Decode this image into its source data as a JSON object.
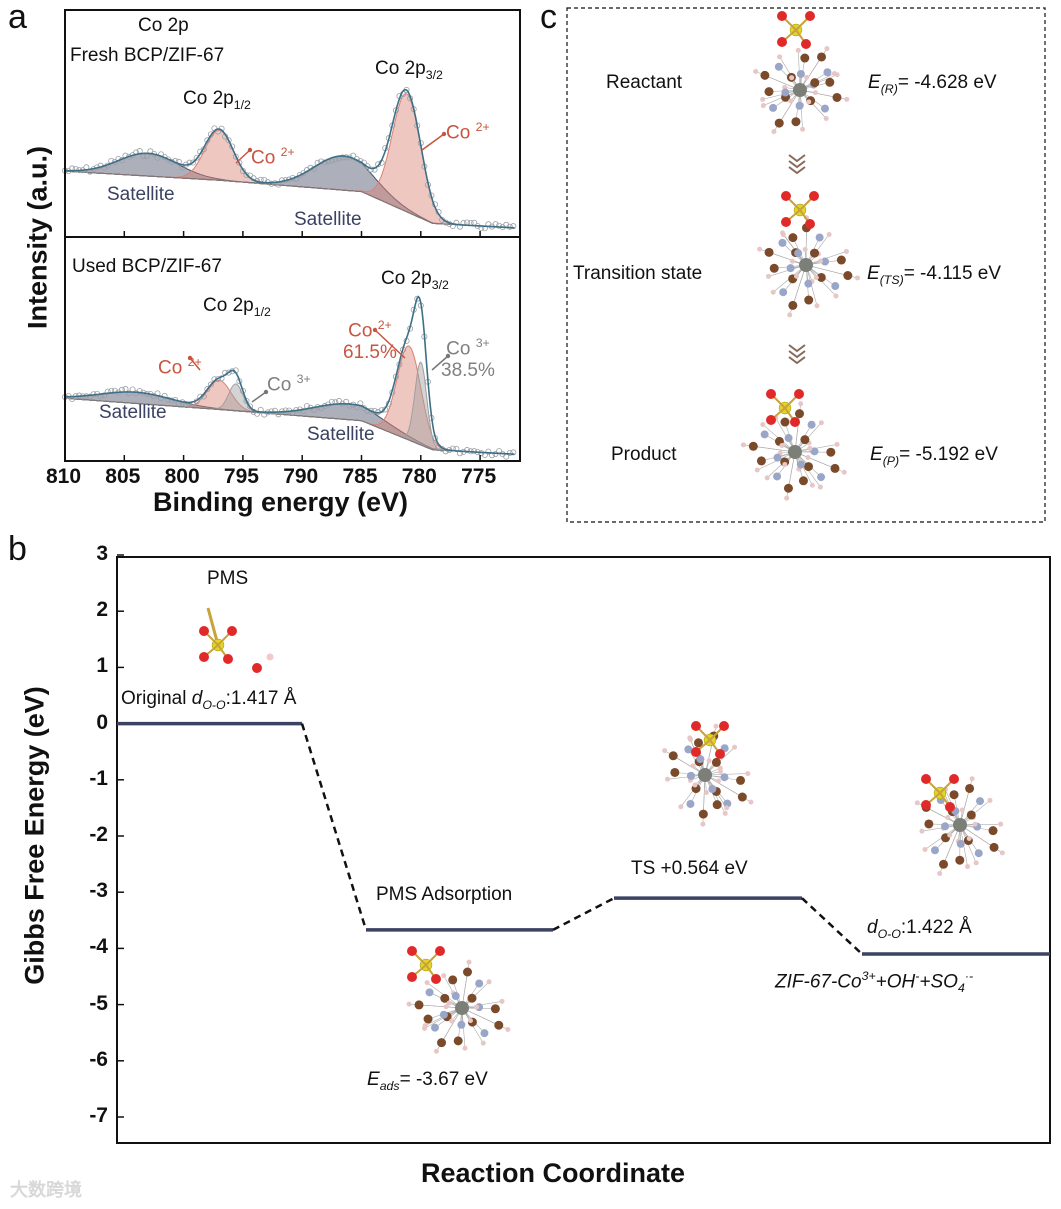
{
  "panels": {
    "a": "a",
    "b": "b",
    "c": "c"
  },
  "watermark": "大数跨境",
  "chart_data": [
    {
      "type": "line",
      "title": "Co 2p",
      "xlabel": "Binding energy (eV)",
      "ylabel": "Intensity (a.u.)",
      "xlim": [
        810,
        772
      ],
      "xticks": [
        "810",
        "805",
        "800",
        "795",
        "790",
        "785",
        "780",
        "775"
      ],
      "subplots": [
        {
          "name": "Fresh BCP/ZIF-67",
          "background": [
            [
              810,
              0.29
            ],
            [
              797,
              0.25
            ],
            [
              785,
              0.2
            ],
            [
              779,
              0.06
            ],
            [
              772,
              0.04
            ]
          ],
          "components": [
            {
              "name": "Satellite",
              "center": 803,
              "height": 0.1,
              "sigma": 2.5,
              "color": "#4a5068"
            },
            {
              "name": "Co 2+",
              "center": 797,
              "height": 0.22,
              "sigma": 1.2,
              "color": "#d98276"
            },
            {
              "name": "Satellite",
              "center": 786.5,
              "height": 0.15,
              "sigma": 2.5,
              "color": "#4a5068"
            },
            {
              "name": "Co 2+",
              "center": 781.2,
              "height": 0.52,
              "sigma": 1.2,
              "color": "#d98276"
            }
          ],
          "labels": {
            "peak_half": "Co 2p",
            "peak_half_sub": "1/2",
            "peak_three": "Co 2p",
            "peak_three_sub": "3/2",
            "co2_a": "Co ",
            "co2_a_sup": "2+",
            "co2_b": "Co ",
            "co2_b_sup": "2+",
            "sat1": "Satellite",
            "sat2": "Satellite"
          }
        },
        {
          "name": "Used BCP/ZIF-67",
          "background": [
            [
              810,
              0.28
            ],
            [
              797,
              0.23
            ],
            [
              785,
              0.18
            ],
            [
              779,
              0.05
            ],
            [
              772,
              0.03
            ]
          ],
          "components": [
            {
              "name": "Satellite",
              "center": 804,
              "height": 0.05,
              "sigma": 3,
              "color": "#4a5068"
            },
            {
              "name": "Co 2+",
              "center": 797,
              "height": 0.13,
              "sigma": 1.0,
              "color": "#d98276"
            },
            {
              "name": "Co 3+",
              "center": 795.6,
              "height": 0.12,
              "sigma": 0.6,
              "color": "#a0a0a0"
            },
            {
              "name": "Satellite",
              "center": 786,
              "height": 0.07,
              "sigma": 3,
              "color": "#4a5068"
            },
            {
              "name": "Co 2+",
              "center": 781.0,
              "height": 0.42,
              "sigma": 1.0,
              "color": "#d98276"
            },
            {
              "name": "Co 3+",
              "center": 780.0,
              "height": 0.37,
              "sigma": 0.5,
              "color": "#a0a0a0"
            }
          ],
          "labels": {
            "peak_half": "Co 2p",
            "peak_half_sub": "1/2",
            "peak_three": "Co 2p",
            "peak_three_sub": "3/2",
            "co2_a": "Co ",
            "co2_a_sup": "2+",
            "co3_a": "Co ",
            "co3_a_sup": "3+",
            "co2_b": "Co ",
            "co2_b_sup": "2+",
            "co2_b_pct": "61.5%",
            "co3_b": "Co ",
            "co3_b_sup": "3+",
            "co3_b_pct": "38.5%",
            "sat1": "Satellite",
            "sat2": "Satellite"
          }
        }
      ]
    },
    {
      "type": "line",
      "title": "",
      "xlabel": "Reaction Coordinate",
      "ylabel": "Gibbs Free Energy (eV)",
      "ylim": [
        3,
        -7.4
      ],
      "yticks": [
        "3",
        "2",
        "1",
        "0",
        "-1",
        "-2",
        "-3",
        "-4",
        "-5",
        "-6",
        "-7"
      ],
      "levels": [
        {
          "name": "PMS",
          "energy": 0
        },
        {
          "name": "PMS Adsorption",
          "energy": -3.67
        },
        {
          "name": "TS",
          "energy": -3.106
        },
        {
          "name": "ZIF-67-Co3+ + OH- + SO4·-",
          "energy": -4.1
        }
      ],
      "line_color": "#3b4262",
      "annotations": {
        "pms": "PMS",
        "orig_pre": "Original ",
        "orig_d": "d",
        "orig_sub": "O-O",
        "orig_val": ":1.417 Å",
        "ads_label": "PMS Adsorption",
        "eads_e": "E",
        "eads_sub": "ads",
        "eads_val": "= -3.67 eV",
        "ts_label": "TS +0.564 eV",
        "prod_d": "d",
        "prod_sub": "O-O",
        "prod_val": ":1.422 Å",
        "prod_formula_a": "ZIF-67-Co",
        "prod_formula_a_sup": "3+",
        "prod_formula_b": "+OH",
        "prod_formula_b_sup": "-",
        "prod_formula_c": "+SO",
        "prod_formula_c_sub": "4",
        "prod_formula_c_sup": "·-"
      }
    }
  ],
  "panel_c": {
    "states": [
      {
        "name": "Reactant",
        "e": "E",
        "sub": "(R)",
        "val": "= -4.628 eV"
      },
      {
        "name": "Transition state",
        "e": "E",
        "sub": "(TS)",
        "val": "= -4.115 eV"
      },
      {
        "name": "Product",
        "e": "E",
        "sub": "(P)",
        "val": "= -5.192 eV"
      }
    ]
  }
}
